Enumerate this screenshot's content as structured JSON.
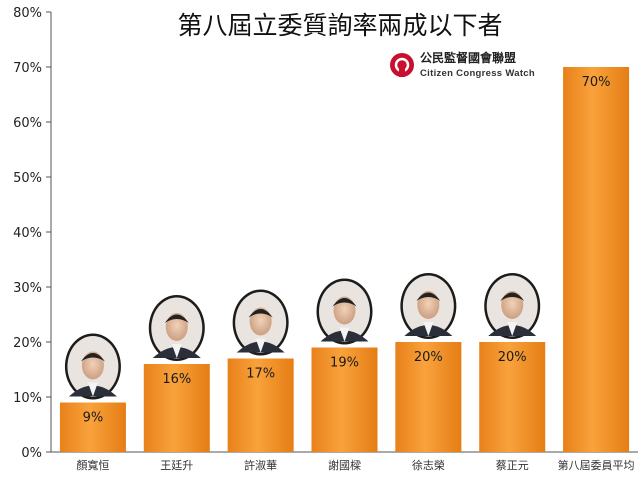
{
  "chart_data": {
    "type": "bar",
    "title": "第八屆立委質詢率兩成以下者",
    "categories": [
      "顏寬恒",
      "王廷升",
      "許淑華",
      "謝國樑",
      "徐志榮",
      "蔡正元",
      "第八屆委員平均"
    ],
    "values": [
      9,
      16,
      17,
      19,
      20,
      20,
      70
    ],
    "data_labels": [
      "9%",
      "16%",
      "17%",
      "19%",
      "20%",
      "20%",
      "70%"
    ],
    "y_ticks": [
      "0%",
      "10%",
      "20%",
      "30%",
      "40%",
      "50%",
      "60%",
      "70%",
      "80%"
    ],
    "ylim": [
      0,
      80
    ],
    "xlabel": "",
    "ylabel": "",
    "grid": false,
    "bar_color": "#f7931e",
    "bar_color_dark": "#e07a10"
  },
  "logo": {
    "name_cn": "公民監督國會聯盟",
    "name_en": "Citizen Congress Watch",
    "color": "#c8102e"
  },
  "portraits": [
    {
      "icon": "portrait-photo-icon"
    },
    {
      "icon": "portrait-photo-icon"
    },
    {
      "icon": "portrait-photo-icon"
    },
    {
      "icon": "portrait-photo-icon"
    },
    {
      "icon": "portrait-photo-icon"
    },
    {
      "icon": "portrait-photo-icon"
    }
  ]
}
